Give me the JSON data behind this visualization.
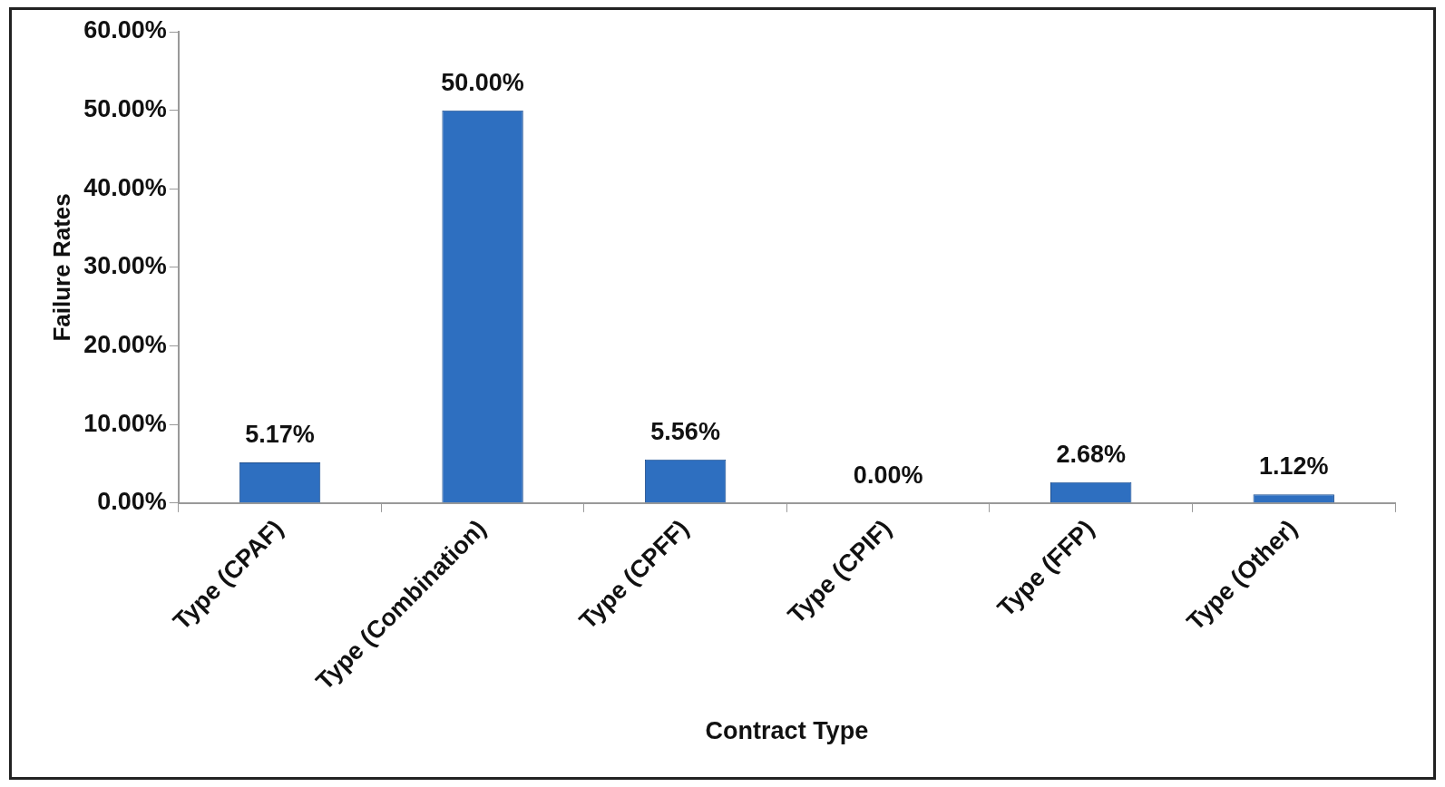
{
  "chart_data": {
    "type": "bar",
    "xlabel": "Contract Type",
    "ylabel": "Failure Rates",
    "categories": [
      "Type (CPAF)",
      "Type (Combination)",
      "Type (CPFF)",
      "Type (CPIF)",
      "Type (FFP)",
      "Type (Other)"
    ],
    "values": [
      5.17,
      50,
      5.56,
      0,
      2.68,
      1.12
    ],
    "value_labels": [
      "5.17%",
      "50.00%",
      "5.56%",
      "0.00%",
      "2.68%",
      "1.12%"
    ],
    "color": "#2e6fc0",
    "ylim": [
      0,
      60
    ],
    "yticks": [
      {
        "value": 0,
        "label": "0.00%"
      },
      {
        "value": 10,
        "label": "10.00%"
      },
      {
        "value": 20,
        "label": "20.00%"
      },
      {
        "value": 30,
        "label": "30.00%"
      },
      {
        "value": 40,
        "label": "40.00%"
      },
      {
        "value": 50,
        "label": "50.00%"
      },
      {
        "value": 60,
        "label": "60.00%"
      }
    ],
    "grid": false,
    "legend": false
  }
}
